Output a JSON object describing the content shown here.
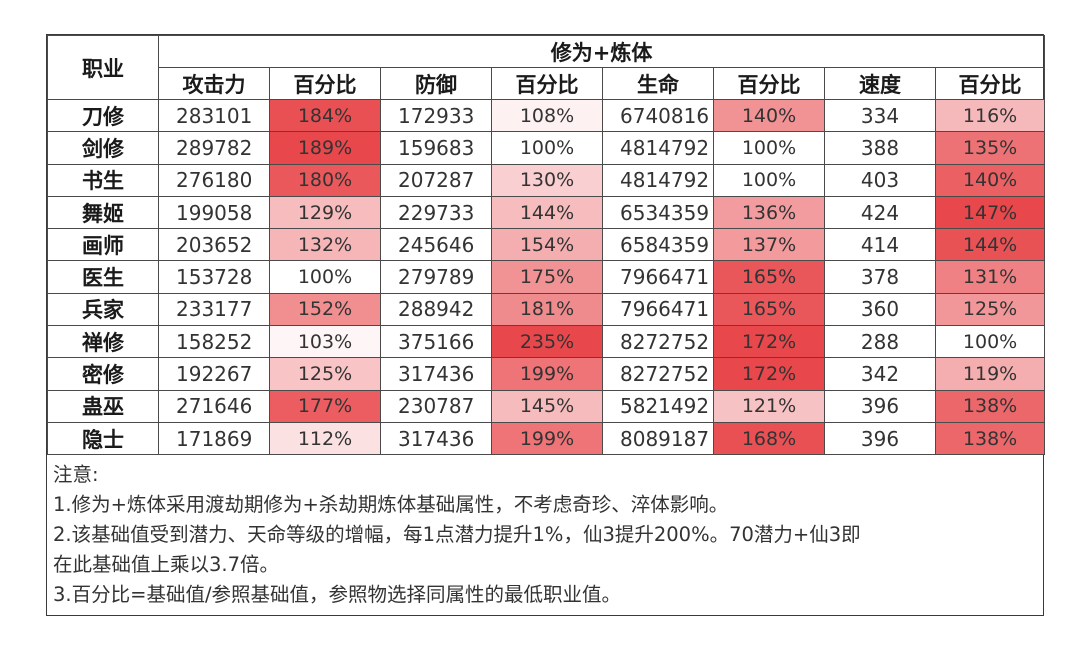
{
  "table": {
    "header": {
      "row_label": "职业",
      "group_label": "修为+炼体",
      "columns": [
        "攻击力",
        "百分比",
        "防御",
        "百分比",
        "生命",
        "百分比",
        "速度",
        "百分比"
      ]
    },
    "rows": [
      {
        "name": "刀修",
        "atk": "283101",
        "atk_pct": "184%",
        "def": "172933",
        "def_pct": "108%",
        "hp": "6740816",
        "hp_pct": "140%",
        "spd": "334",
        "spd_pct": "116%"
      },
      {
        "name": "剑修",
        "atk": "289782",
        "atk_pct": "189%",
        "def": "159683",
        "def_pct": "100%",
        "hp": "4814792",
        "hp_pct": "100%",
        "spd": "388",
        "spd_pct": "135%"
      },
      {
        "name": "书生",
        "atk": "276180",
        "atk_pct": "180%",
        "def": "207287",
        "def_pct": "130%",
        "hp": "4814792",
        "hp_pct": "100%",
        "spd": "403",
        "spd_pct": "140%"
      },
      {
        "name": "舞姬",
        "atk": "199058",
        "atk_pct": "129%",
        "def": "229733",
        "def_pct": "144%",
        "hp": "6534359",
        "hp_pct": "136%",
        "spd": "424",
        "spd_pct": "147%"
      },
      {
        "name": "画师",
        "atk": "203652",
        "atk_pct": "132%",
        "def": "245646",
        "def_pct": "154%",
        "hp": "6584359",
        "hp_pct": "137%",
        "spd": "414",
        "spd_pct": "144%"
      },
      {
        "name": "医生",
        "atk": "153728",
        "atk_pct": "100%",
        "def": "279789",
        "def_pct": "175%",
        "hp": "7966471",
        "hp_pct": "165%",
        "spd": "378",
        "spd_pct": "131%"
      },
      {
        "name": "兵家",
        "atk": "233177",
        "atk_pct": "152%",
        "def": "288942",
        "def_pct": "181%",
        "hp": "7966471",
        "hp_pct": "165%",
        "spd": "360",
        "spd_pct": "125%"
      },
      {
        "name": "禅修",
        "atk": "158252",
        "atk_pct": "103%",
        "def": "375166",
        "def_pct": "235%",
        "hp": "8272752",
        "hp_pct": "172%",
        "spd": "288",
        "spd_pct": "100%"
      },
      {
        "name": "密修",
        "atk": "192267",
        "atk_pct": "125%",
        "def": "317436",
        "def_pct": "199%",
        "hp": "8272752",
        "hp_pct": "172%",
        "spd": "342",
        "spd_pct": "119%"
      },
      {
        "name": "蛊巫",
        "atk": "271646",
        "atk_pct": "177%",
        "def": "230787",
        "def_pct": "145%",
        "hp": "5821492",
        "hp_pct": "121%",
        "spd": "396",
        "spd_pct": "138%"
      },
      {
        "name": "隐士",
        "atk": "171869",
        "atk_pct": "112%",
        "def": "317436",
        "def_pct": "199%",
        "hp": "8089187",
        "hp_pct": "168%",
        "spd": "396",
        "spd_pct": "138%"
      }
    ]
  },
  "notes": [
    "注意:",
    "1.修为+炼体采用渡劫期修为+杀劫期炼体基础属性，不考虑奇珍、淬体影响。",
    "2.该基础值受到潜力、天命等级的增幅，每1点潜力提升1%，仙3提升200%。70潜力+仙3即",
    "在此基础值上乘以3.7倍。",
    "3.百分比=基础值/参照基础值，参照物选择同属性的最低职业值。"
  ],
  "colors": {
    "heat_low": "#ffffff",
    "heat_high": "#e8474b",
    "border": "#4a4a4a"
  }
}
